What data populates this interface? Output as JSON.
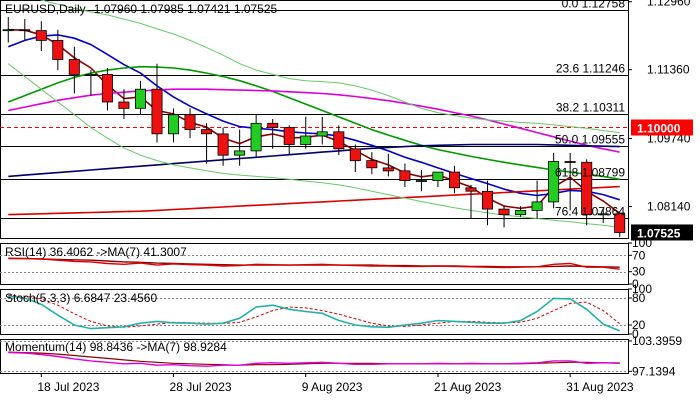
{
  "header": {
    "symbol": "EURUSD,Daily",
    "ohlc": "1.07960 1.07985 1.07421 1.07525"
  },
  "price_axis": {
    "ticks": [
      "1.12960",
      "1.11360",
      "1.09740",
      "1.08140"
    ],
    "last_price": "1.07525",
    "level_tag": "1.10000"
  },
  "fib_levels": [
    {
      "label": "0.0 1.12758",
      "value": 1.12758
    },
    {
      "label": "23.6 1.11246",
      "value": 1.11246
    },
    {
      "label": "38.2 1.10311",
      "value": 1.10311
    },
    {
      "label": "50.0 1.09555",
      "value": 1.09555
    },
    {
      "label": "61.8 1.08799",
      "value": 1.08799
    },
    {
      "label": "76.4 1.07864",
      "value": 1.07864
    }
  ],
  "date_labels": [
    "18 Jul 2023",
    "28 Jul 2023",
    "9 Aug 2023",
    "21 Aug 2023",
    "31 Aug 2023"
  ],
  "rsi_panel": {
    "title": "RSI(14) 36.4062  ->MA(7) 41.3007",
    "ticks": [
      "100",
      "70",
      "30",
      "0"
    ]
  },
  "stoch_panel": {
    "title": "Stoch(5,3,3) 6.6847 23.4560",
    "ticks": [
      "100",
      "80",
      "20",
      "0"
    ]
  },
  "momentum_panel": {
    "title": "Momentum(14) 98.8436  ->MA(7) 98.9284",
    "ticks": [
      "103.3959",
      "97.1394"
    ]
  },
  "colors": {
    "bull": "#22cc22",
    "bear": "#ee1111",
    "fast_ma": "#8b0000",
    "blue_ma": "#0000cc",
    "green_ma": "#009900",
    "magenta_ma": "#dd00dd",
    "navy_ma": "#00006b",
    "red_ma": "#dd0000",
    "bollinger": "#66cc66",
    "level_red": "#ff0000",
    "signal_red": "#dd0000",
    "osc_teal": "#20b2aa"
  },
  "chart_data": {
    "type": "candlestick",
    "x": [
      "2023-07-14",
      "2023-07-17",
      "2023-07-18",
      "2023-07-19",
      "2023-07-20",
      "2023-07-21",
      "2023-07-24",
      "2023-07-25",
      "2023-07-26",
      "2023-07-27",
      "2023-07-28",
      "2023-07-31",
      "2023-08-01",
      "2023-08-02",
      "2023-08-03",
      "2023-08-04",
      "2023-08-07",
      "2023-08-08",
      "2023-08-09",
      "2023-08-10",
      "2023-08-11",
      "2023-08-14",
      "2023-08-15",
      "2023-08-16",
      "2023-08-17",
      "2023-08-18",
      "2023-08-21",
      "2023-08-22",
      "2023-08-23",
      "2023-08-24",
      "2023-08-25",
      "2023-08-28",
      "2023-08-29",
      "2023-08-30",
      "2023-08-31",
      "2023-09-01",
      "2023-09-04",
      "2023-09-05"
    ],
    "open": [
      1.123,
      1.123,
      1.1228,
      1.1205,
      1.116,
      1.1125,
      1.1125,
      1.106,
      1.1045,
      1.109,
      1.0985,
      1.103,
      1.0995,
      1.0985,
      1.0935,
      1.0945,
      1.101,
      1.1,
      1.096,
      1.098,
      1.099,
      1.095,
      1.0922,
      1.0905,
      1.0898,
      1.0875,
      1.0875,
      1.0895,
      1.0858,
      1.085,
      1.0808,
      1.0795,
      1.0805,
      1.0825,
      1.092,
      1.0918,
      1.0795,
      1.0797
    ],
    "high": [
      1.126,
      1.1255,
      1.125,
      1.123,
      1.119,
      1.1135,
      1.114,
      1.109,
      1.111,
      1.115,
      1.1045,
      1.1045,
      1.101,
      1.1,
      1.0995,
      1.103,
      1.102,
      1.1005,
      1.1025,
      1.1025,
      1.1005,
      1.096,
      1.0942,
      1.0938,
      1.0915,
      1.09,
      1.0895,
      1.091,
      1.0865,
      1.0875,
      1.0815,
      1.0815,
      1.0875,
      1.094,
      1.094,
      1.0925,
      1.081,
      1.08
    ],
    "low": [
      1.12,
      1.1205,
      1.118,
      1.1135,
      1.108,
      1.1075,
      1.104,
      1.102,
      1.103,
      1.0965,
      1.0965,
      1.0975,
      1.0915,
      1.091,
      1.091,
      1.093,
      1.095,
      1.0935,
      1.095,
      1.096,
      1.0935,
      1.0895,
      1.089,
      1.0885,
      1.086,
      1.085,
      1.086,
      1.0845,
      1.0785,
      1.077,
      1.0765,
      1.079,
      1.0785,
      1.081,
      1.0805,
      1.077,
      1.0775,
      1.0742
    ],
    "close": [
      1.123,
      1.1228,
      1.1205,
      1.116,
      1.1125,
      1.1125,
      1.106,
      1.1045,
      1.109,
      1.0985,
      1.103,
      1.0995,
      1.0985,
      1.0935,
      1.0945,
      1.101,
      1.1,
      1.096,
      1.098,
      1.099,
      1.095,
      1.0922,
      1.0905,
      1.0898,
      1.0875,
      1.0875,
      1.0895,
      1.0858,
      1.085,
      1.0808,
      1.0795,
      1.0805,
      1.0825,
      1.092,
      1.0918,
      1.0795,
      1.0797,
      1.0753
    ],
    "ylim": [
      1.074,
      1.13
    ],
    "series": [
      {
        "name": "",
        "color_key": "fast_ma",
        "values": [
          1.123,
          1.1229,
          1.1218,
          1.1195,
          1.1164,
          1.114,
          1.11,
          1.1068,
          1.1072,
          1.104,
          1.1032,
          1.1012,
          1.1001,
          1.0975,
          1.0962,
          1.0978,
          1.0985,
          1.0975,
          1.0977,
          1.0982,
          1.0967,
          1.0946,
          1.0925,
          1.0912,
          1.0893,
          1.0884,
          1.0889,
          1.0874,
          1.086,
          1.0834,
          1.0815,
          1.081,
          1.0815,
          1.086,
          1.0883,
          1.085,
          1.0827,
          1.0798
        ]
      },
      {
        "name": "",
        "color_key": "blue_ma",
        "values": [
          1.119,
          1.1205,
          1.1215,
          1.1218,
          1.121,
          1.1195,
          1.1172,
          1.1148,
          1.1128,
          1.1098,
          1.1072,
          1.105,
          1.1032,
          1.1015,
          1.1002,
          1.0998,
          1.0995,
          1.099,
          1.0987,
          1.0985,
          1.098,
          1.097,
          1.0958,
          1.0945,
          1.093,
          1.0918,
          1.0905,
          1.0892,
          1.088,
          1.0868,
          1.0855,
          1.0845,
          1.084,
          1.0845,
          1.0852,
          1.085,
          1.0842,
          1.083
        ]
      },
      {
        "name": "",
        "color_key": "green_ma",
        "values": [
          1.106,
          1.1075,
          1.109,
          1.1105,
          1.1118,
          1.1128,
          1.1135,
          1.114,
          1.1143,
          1.1142,
          1.114,
          1.1135,
          1.1128,
          1.112,
          1.111,
          1.1098,
          1.1085,
          1.107,
          1.1055,
          1.104,
          1.1025,
          1.101,
          1.0995,
          1.0982,
          1.097,
          1.0958,
          1.0948,
          1.094,
          1.0932,
          1.0925,
          1.0918,
          1.0912,
          1.0906,
          1.09,
          1.0895,
          1.089,
          1.0885,
          1.0878
        ]
      },
      {
        "name": "",
        "color_key": "magenta_ma",
        "values": [
          1.104,
          1.1048,
          1.1056,
          1.1064,
          1.107,
          1.1076,
          1.108,
          1.1083,
          1.1086,
          1.1088,
          1.109,
          1.109,
          1.109,
          1.1089,
          1.1088,
          1.1087,
          1.1086,
          1.1084,
          1.1082,
          1.108,
          1.1077,
          1.1073,
          1.1068,
          1.1063,
          1.1057,
          1.105,
          1.1043,
          1.1035,
          1.1027,
          1.1018,
          1.1008,
          1.0998,
          1.0988,
          1.0978,
          1.0968,
          1.0958,
          1.095,
          1.0942
        ]
      },
      {
        "name": "",
        "color_key": "navy_ma",
        "values": [
          1.0885,
          1.0888,
          1.0891,
          1.0894,
          1.0897,
          1.09,
          1.0903,
          1.0906,
          1.0909,
          1.0912,
          1.0915,
          1.0918,
          1.0921,
          1.0924,
          1.0927,
          1.093,
          1.0933,
          1.0936,
          1.0939,
          1.0942,
          1.0945,
          1.0948,
          1.0951,
          1.0953,
          1.0955,
          1.0957,
          1.0958,
          1.0959,
          1.096,
          1.096,
          1.096,
          1.096,
          1.096,
          1.0959,
          1.0958,
          1.0957,
          1.0956,
          1.0955
        ]
      },
      {
        "name": "",
        "color_key": "red_ma",
        "values": [
          1.0795,
          1.0796,
          1.0797,
          1.0798,
          1.0799,
          1.08,
          1.0801,
          1.0802,
          1.0803,
          1.0805,
          1.0807,
          1.0809,
          1.0811,
          1.0813,
          1.0815,
          1.0817,
          1.0819,
          1.0821,
          1.0823,
          1.0825,
          1.0827,
          1.0829,
          1.0831,
          1.0833,
          1.0835,
          1.0837,
          1.0839,
          1.0841,
          1.0843,
          1.0845,
          1.0847,
          1.0849,
          1.0851,
          1.0853,
          1.0855,
          1.0857,
          1.0859,
          1.0861
        ]
      },
      {
        "name": "",
        "color_key": "bollinger",
        "values": [
          1.132,
          1.131,
          1.13,
          1.129,
          1.128,
          1.1272,
          1.1265,
          1.1255,
          1.1245,
          1.1232,
          1.122,
          1.1205,
          1.1188,
          1.117,
          1.115,
          1.1135,
          1.1125,
          1.1115,
          1.111,
          1.1108,
          1.1105,
          1.1098,
          1.1088,
          1.1075,
          1.106,
          1.1045,
          1.1035,
          1.1028,
          1.1022,
          1.1018,
          1.1015,
          1.1012,
          1.101,
          1.1006,
          1.1002,
          1.0998,
          1.0993,
          1.0988
        ]
      },
      {
        "name": "",
        "color_key": "bollinger",
        "values": [
          1.115,
          1.112,
          1.109,
          1.106,
          1.103,
          1.1,
          1.0975,
          1.0952,
          1.0935,
          1.0922,
          1.0912,
          1.0905,
          1.0898,
          1.0892,
          1.0888,
          1.0885,
          1.0882,
          1.0878,
          1.0874,
          1.087,
          1.0865,
          1.0858,
          1.085,
          1.0842,
          1.0834,
          1.0826,
          1.0818,
          1.0811,
          1.0805,
          1.0799,
          1.0794,
          1.079,
          1.0786,
          1.0782,
          1.0778,
          1.0774,
          1.077,
          1.0765
        ]
      }
    ],
    "oscillators": {
      "rsi": {
        "ylim": [
          0,
          100
        ],
        "guides": [
          70,
          30
        ],
        "rsi": [
          63,
          62,
          61,
          58,
          55,
          54,
          50,
          48,
          51,
          46,
          49,
          47,
          46,
          44,
          45,
          48,
          47,
          46,
          47,
          48,
          46,
          45,
          44,
          44,
          43,
          43,
          44,
          43,
          42,
          41,
          40,
          41,
          42,
          48,
          50,
          41,
          41,
          36
        ],
        "ma": [
          62,
          62,
          61,
          60,
          59,
          58,
          56,
          54,
          53,
          51,
          50,
          49,
          48,
          47,
          46,
          46,
          46,
          46,
          46,
          46,
          46,
          46,
          46,
          45,
          45,
          44,
          44,
          44,
          43,
          43,
          42,
          42,
          42,
          43,
          44,
          43,
          42,
          41
        ]
      },
      "stoch": {
        "ylim": [
          0,
          100
        ],
        "guides": [
          80,
          20
        ],
        "k": [
          84,
          80,
          66,
          42,
          20,
          12,
          14,
          16,
          24,
          28,
          25,
          24,
          22,
          24,
          35,
          60,
          64,
          55,
          50,
          46,
          30,
          20,
          16,
          15,
          20,
          24,
          30,
          28,
          26,
          24,
          24,
          30,
          50,
          79,
          78,
          55,
          22,
          7
        ],
        "d": [
          86,
          84,
          78,
          64,
          45,
          28,
          18,
          15,
          18,
          22,
          26,
          25,
          24,
          23,
          26,
          38,
          52,
          60,
          58,
          52,
          44,
          34,
          24,
          18,
          17,
          20,
          24,
          28,
          28,
          26,
          25,
          26,
          35,
          52,
          68,
          71,
          52,
          23
        ]
      },
      "momentum": {
        "ylim": [
          96.8,
          103.8
        ],
        "guides": [
          103.3959,
          97.1394
        ],
        "mom": [
          101.0,
          100.9,
          100.6,
          100.2,
          99.7,
          99.3,
          99.0,
          98.7,
          98.8,
          98.4,
          98.5,
          98.3,
          98.2,
          98.4,
          98.4,
          98.8,
          98.9,
          98.8,
          98.9,
          99.0,
          98.8,
          98.6,
          98.6,
          98.7,
          98.7,
          98.7,
          98.8,
          98.7,
          98.8,
          98.7,
          98.7,
          98.8,
          98.9,
          99.3,
          99.3,
          98.8,
          98.9,
          98.8
        ],
        "ma": [
          101.1,
          101.0,
          100.9,
          100.7,
          100.4,
          100.1,
          99.8,
          99.5,
          99.2,
          99.0,
          98.8,
          98.7,
          98.6,
          98.5,
          98.4,
          98.5,
          98.5,
          98.6,
          98.7,
          98.8,
          98.8,
          98.8,
          98.8,
          98.7,
          98.7,
          98.7,
          98.7,
          98.7,
          98.7,
          98.7,
          98.7,
          98.7,
          98.8,
          98.9,
          99.0,
          99.0,
          98.9,
          98.9
        ]
      }
    }
  }
}
